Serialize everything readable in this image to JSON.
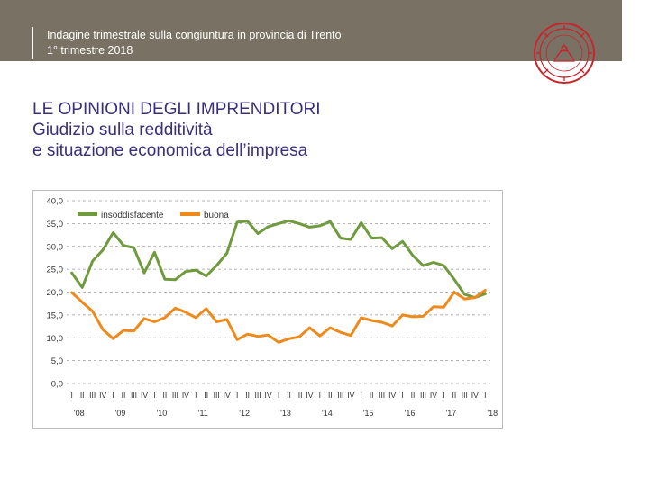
{
  "header": {
    "line1": "Indagine trimestrale sulla congiuntura in provincia di Trento",
    "line2": "1° trimestre 2018"
  },
  "title": {
    "line1": "LE OPINIONI DEGLI IMPRENDITORI",
    "line2": "Giudizio sulla redditività",
    "line3": "e situazione economica dell’impresa"
  },
  "colors": {
    "header_band": "#7a7165",
    "title": "#3a2f7a",
    "series_insoddisfacente": "#6f9a3d",
    "series_buona": "#ee8a1c",
    "seal": "#c8242b"
  },
  "chart_data": {
    "type": "line",
    "title": "",
    "xlabel": "",
    "ylabel": "",
    "ylim": [
      0,
      40
    ],
    "y_ticks": [
      "0,0",
      "5,0",
      "10,0",
      "15,0",
      "20,0",
      "25,0",
      "30,0",
      "35,0",
      "40,0"
    ],
    "grid": true,
    "legend": "top-left",
    "quarter_labels": [
      "I",
      "II",
      "III",
      "IV"
    ],
    "years": [
      "'08",
      "'09",
      "'10",
      "'11",
      "'12",
      "'13",
      "'14",
      "'15",
      "'16",
      "'17",
      "'18"
    ],
    "series": [
      {
        "name": "insoddisfacente",
        "values": [
          24.2,
          21.0,
          26.8,
          29.2,
          33.0,
          30.2,
          29.7,
          24.2,
          28.7,
          22.8,
          22.7,
          24.5,
          24.8,
          23.5,
          25.8,
          28.5,
          35.3,
          35.5,
          32.8,
          34.3,
          35.0,
          35.6,
          35.0,
          34.2,
          34.5,
          35.4,
          31.8,
          31.5,
          35.2,
          31.8,
          31.9,
          29.5,
          31.1,
          28.0,
          25.8,
          26.5,
          25.8,
          22.8,
          19.5,
          18.8,
          19.6
        ]
      },
      {
        "name": "buona",
        "values": [
          19.9,
          17.8,
          15.8,
          11.8,
          9.8,
          11.6,
          11.5,
          14.2,
          13.5,
          14.4,
          16.5,
          15.6,
          14.4,
          16.4,
          13.5,
          14.0,
          9.6,
          10.8,
          10.3,
          10.6,
          9.0,
          9.8,
          10.2,
          12.2,
          10.4,
          12.2,
          11.2,
          10.5,
          14.4,
          13.8,
          13.4,
          12.6,
          15.0,
          14.6,
          14.7,
          16.8,
          16.7,
          20.0,
          18.5,
          18.8,
          20.4
        ]
      }
    ]
  }
}
